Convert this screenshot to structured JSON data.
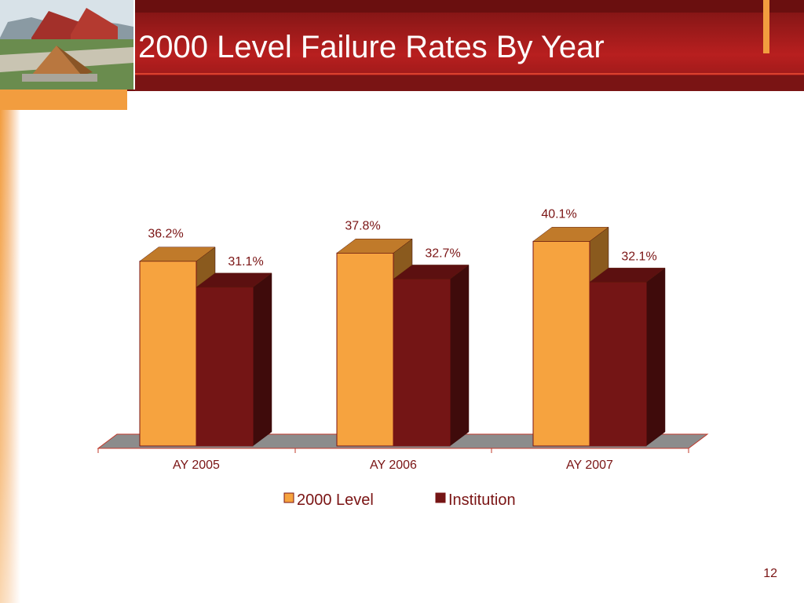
{
  "header": {
    "title": "2000 Level Failure Rates By Year",
    "page_number": "12"
  },
  "colors": {
    "header_red": "#9e1a1a",
    "accent_orange": "#f29d3f",
    "series_2000_front": "#f6a33f",
    "series_2000_top": "#c07a2a",
    "series_2000_side": "#8a5a1e",
    "series_inst_front": "#741515",
    "series_inst_top": "#5c1010",
    "series_inst_side": "#3f0b0b",
    "floor": "#8c8c8c",
    "label_text": "#7a1414"
  },
  "chart_data": {
    "type": "bar",
    "style": "3d-clustered-column",
    "title": "",
    "xlabel": "",
    "ylabel": "",
    "categories": [
      "AY 2005",
      "AY 2006",
      "AY 2007"
    ],
    "series": [
      {
        "name": "2000 Level",
        "values": [
          36.2,
          37.8,
          40.1
        ],
        "labels": [
          "36.2%",
          "37.8%",
          "40.1%"
        ],
        "color": "#f6a33f"
      },
      {
        "name": "Institution",
        "values": [
          31.1,
          32.7,
          32.1
        ],
        "labels": [
          "31.1%",
          "32.7%",
          "32.1%"
        ],
        "color": "#741515"
      }
    ],
    "ylim": [
      0,
      50
    ],
    "grid": false,
    "legend_position": "bottom"
  }
}
